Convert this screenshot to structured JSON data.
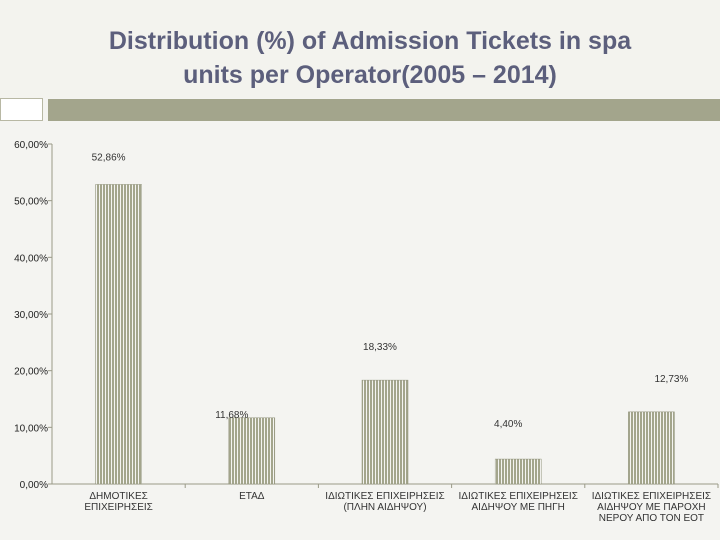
{
  "title": {
    "line1": "Distribution (%) of Admission Tickets in spa",
    "line2": "units per Operator(2005 – 2014)"
  },
  "chart_data": {
    "type": "bar",
    "title": "Distribution (%) of Admission Tickets in spa units per Operator(2005 – 2014)",
    "categories": [
      [
        "ΔΗΜΟΤΙΚΕΣ",
        "ΕΠΙΧΕΙΡΗΣΕΙΣ"
      ],
      [
        "ΕΤΑΔ"
      ],
      [
        "ΙΔΙΩΤΙΚΕΣ ΕΠΙΧΕΙΡΗΣΕΙΣ",
        "(ΠΛΗΝ ΑΙΔΗΨΟΥ)"
      ],
      [
        "ΙΔΙΩΤΙΚΕΣ ΕΠΙΧΕΙΡΗΣΕΙΣ",
        "ΑΙΔΗΨΟΥ ΜΕ ΠΗΓΗ"
      ],
      [
        "ΙΔΙΩΤΙΚΕΣ ΕΠΙΧΕΙΡΗΣΕΙΣ",
        "ΑΙΔΗΨΟΥ ΜΕ ΠΑΡΟΧΗ",
        "ΝΕΡΟΥ ΑΠΟ ΤΟΝ ΕΟΤ"
      ]
    ],
    "values": [
      52.86,
      11.68,
      18.33,
      4.4,
      12.73
    ],
    "value_labels": [
      "52,86%",
      "11,68%",
      "18,33%",
      "4,40%",
      "12,73%"
    ],
    "ylim": [
      0,
      60
    ],
    "yticks": [
      0,
      10,
      20,
      30,
      40,
      50,
      60
    ],
    "ytick_labels": [
      "0,00%",
      "10,00%",
      "20,00%",
      "30,00%",
      "40,00%",
      "50,00%",
      "60,00%"
    ],
    "grid": false,
    "legend": "none",
    "bar_color": "#a3a58c",
    "xlabel": "",
    "ylabel": ""
  }
}
